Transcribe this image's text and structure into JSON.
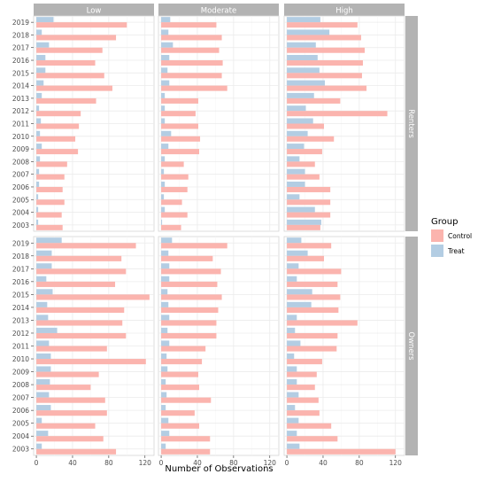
{
  "chart_data": {
    "type": "bar",
    "orientation": "horizontal",
    "xlabel": "Number of Observations",
    "ylabel": "",
    "xlim": [
      -3,
      130
    ],
    "xticks": [
      0,
      40,
      80,
      120
    ],
    "grid": true,
    "legend": {
      "title": "Group",
      "position": "right",
      "entries": [
        {
          "name": "Control",
          "color": "#fbb4ae"
        },
        {
          "name": "Treat",
          "color": "#b3cde3"
        }
      ]
    },
    "column_facets": [
      "Low",
      "Moderate",
      "High"
    ],
    "row_facets": [
      "Renters",
      "Owners"
    ],
    "categories": [
      "2019",
      "2018",
      "2017",
      "2016",
      "2015",
      "2014",
      "2013",
      "2012",
      "2011",
      "2010",
      "2009",
      "2008",
      "2007",
      "2006",
      "2005",
      "2004",
      "2003"
    ],
    "series": [
      "Control",
      "Treat"
    ],
    "panels": [
      {
        "row": "Renters",
        "col": "Low",
        "control": [
          100,
          88,
          73,
          65,
          75,
          84,
          66,
          49,
          47,
          43,
          46,
          34,
          31,
          29,
          31,
          28,
          29
        ],
        "treat": [
          19,
          6,
          14,
          10,
          10,
          8,
          6,
          3,
          5,
          4,
          6,
          4,
          3,
          3,
          2,
          2,
          2
        ]
      },
      {
        "row": "Renters",
        "col": "Moderate",
        "control": [
          61,
          67,
          64,
          68,
          67,
          73,
          41,
          38,
          41,
          43,
          42,
          25,
          30,
          29,
          23,
          29,
          22
        ],
        "treat": [
          10,
          8,
          13,
          9,
          7,
          9,
          4,
          4,
          4,
          11,
          8,
          4,
          3,
          4,
          3,
          4,
          1
        ]
      },
      {
        "row": "Renters",
        "col": "High",
        "control": [
          78,
          82,
          86,
          84,
          83,
          88,
          59,
          111,
          41,
          52,
          39,
          31,
          36,
          48,
          48,
          48,
          37
        ],
        "treat": [
          37,
          47,
          32,
          34,
          36,
          42,
          30,
          21,
          29,
          23,
          19,
          14,
          20,
          20,
          14,
          31,
          38
        ]
      },
      {
        "row": "Owners",
        "col": "Low",
        "control": [
          110,
          94,
          99,
          87,
          125,
          97,
          95,
          99,
          78,
          121,
          69,
          60,
          76,
          78,
          65,
          74,
          88
        ],
        "treat": [
          28,
          17,
          17,
          11,
          18,
          12,
          13,
          23,
          14,
          16,
          16,
          15,
          14,
          16,
          6,
          13,
          6
        ]
      },
      {
        "row": "Owners",
        "col": "Moderate",
        "control": [
          73,
          57,
          66,
          62,
          67,
          63,
          61,
          61,
          49,
          45,
          41,
          42,
          55,
          37,
          42,
          54,
          54
        ],
        "treat": [
          12,
          8,
          9,
          9,
          7,
          8,
          9,
          7,
          9,
          6,
          7,
          5,
          6,
          5,
          8,
          9,
          5
        ]
      },
      {
        "row": "Owners",
        "col": "High",
        "control": [
          49,
          41,
          60,
          56,
          59,
          57,
          78,
          56,
          55,
          39,
          33,
          31,
          35,
          36,
          49,
          56,
          120
        ],
        "treat": [
          16,
          23,
          13,
          11,
          28,
          27,
          11,
          9,
          15,
          8,
          11,
          11,
          13,
          9,
          13,
          11,
          14
        ]
      }
    ]
  }
}
